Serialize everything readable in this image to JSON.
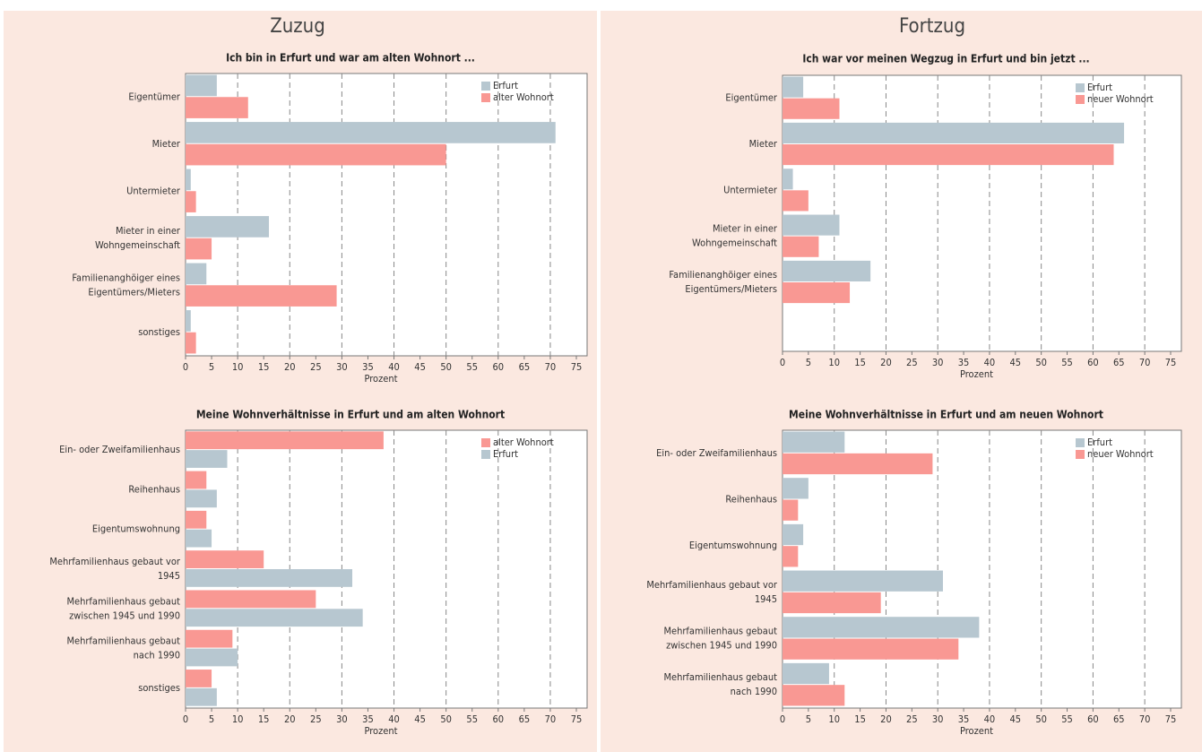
{
  "headings": [
    "Zuzug",
    "Fortzug"
  ],
  "chart_data": [
    {
      "type": "bar",
      "orientation": "horizontal",
      "title": "Ich bin in Erfurt und war am alten Wohnort ...",
      "x_label": "Prozent",
      "categories": [
        "Eigentümer",
        "Mieter",
        "Untermieter",
        "Mieter in einer\nWohngemeinschaft",
        "Familienanghöiger eines\nEigentümers/Mieters",
        "sonstiges"
      ],
      "series": [
        {
          "name": "Erfurt",
          "color": "#b7c7d0",
          "values": [
            6,
            71,
            1,
            16,
            4,
            1
          ]
        },
        {
          "name": "alter Wohnort",
          "color": "#f99893",
          "values": [
            12,
            50,
            2,
            5,
            29,
            2
          ]
        }
      ],
      "xlim": [
        0,
        75
      ],
      "xticks": [
        0,
        5,
        10,
        15,
        20,
        25,
        30,
        35,
        40,
        45,
        50,
        55,
        60,
        65,
        70,
        75
      ],
      "grid": true,
      "legend": "upper right"
    },
    {
      "type": "bar",
      "orientation": "horizontal",
      "title": "Ich war vor meinen Wegzug in Erfurt und bin jetzt ...",
      "x_label": "Prozent",
      "categories": [
        "Eigentümer",
        "Mieter",
        "Untermieter",
        "Mieter in einer\nWohngemeinschaft",
        "Familienanghöiger eines\nEigentümers/Mieters",
        null
      ],
      "series": [
        {
          "name": "Erfurt",
          "color": "#b7c7d0",
          "values": [
            4,
            66,
            2,
            11,
            17,
            null
          ]
        },
        {
          "name": "neuer Wohnort",
          "color": "#f99893",
          "values": [
            11,
            64,
            5,
            7,
            13,
            null
          ]
        }
      ],
      "xlim": [
        0,
        75
      ],
      "xticks": [
        0,
        5,
        10,
        15,
        20,
        25,
        30,
        35,
        40,
        45,
        50,
        55,
        60,
        65,
        70,
        75
      ],
      "grid": true,
      "legend": "upper right"
    },
    {
      "type": "bar",
      "orientation": "horizontal",
      "title": "Meine Wohnverhältnisse in Erfurt und am alten Wohnort",
      "x_label": "Prozent",
      "categories": [
        "Ein- oder Zweifamilienhaus",
        "Reihenhaus",
        "Eigentumswohnung",
        "Mehrfamilienhaus gebaut vor\n1945",
        "Mehrfamilienhaus gebaut\nzwischen 1945 und 1990",
        "Mehrfamilienhaus gebaut\nnach 1990",
        "sonstiges"
      ],
      "series": [
        {
          "name": "alter Wohnort",
          "color": "#f99893",
          "values": [
            38,
            4,
            4,
            15,
            25,
            9,
            5
          ]
        },
        {
          "name": "Erfurt",
          "color": "#b7c7d0",
          "values": [
            8,
            6,
            5,
            32,
            34,
            10,
            6
          ]
        }
      ],
      "xlim": [
        0,
        75
      ],
      "xticks": [
        0,
        5,
        10,
        15,
        20,
        25,
        30,
        35,
        40,
        45,
        50,
        55,
        60,
        65,
        70,
        75
      ],
      "grid": true,
      "legend": "upper right"
    },
    {
      "type": "bar",
      "orientation": "horizontal",
      "title": "Meine Wohnverhältnisse in Erfurt und am neuen Wohnort",
      "x_label": "Prozent",
      "categories": [
        "Ein- oder Zweifamilienhaus",
        "Reihenhaus",
        "Eigentumswohnung",
        "Mehrfamilienhaus gebaut vor\n1945",
        "Mehrfamilienhaus gebaut\nzwischen 1945 und 1990",
        "Mehrfamilienhaus gebaut\nnach 1990"
      ],
      "series": [
        {
          "name": "Erfurt",
          "color": "#b7c7d0",
          "values": [
            12,
            5,
            4,
            31,
            38,
            9
          ]
        },
        {
          "name": "neuer Wohnort",
          "color": "#f99893",
          "values": [
            29,
            3,
            3,
            19,
            34,
            12
          ]
        }
      ],
      "xlim": [
        0,
        75
      ],
      "xticks": [
        0,
        5,
        10,
        15,
        20,
        25,
        30,
        35,
        40,
        45,
        50,
        55,
        60,
        65,
        70,
        75
      ],
      "grid": true,
      "legend": "upper right"
    }
  ]
}
